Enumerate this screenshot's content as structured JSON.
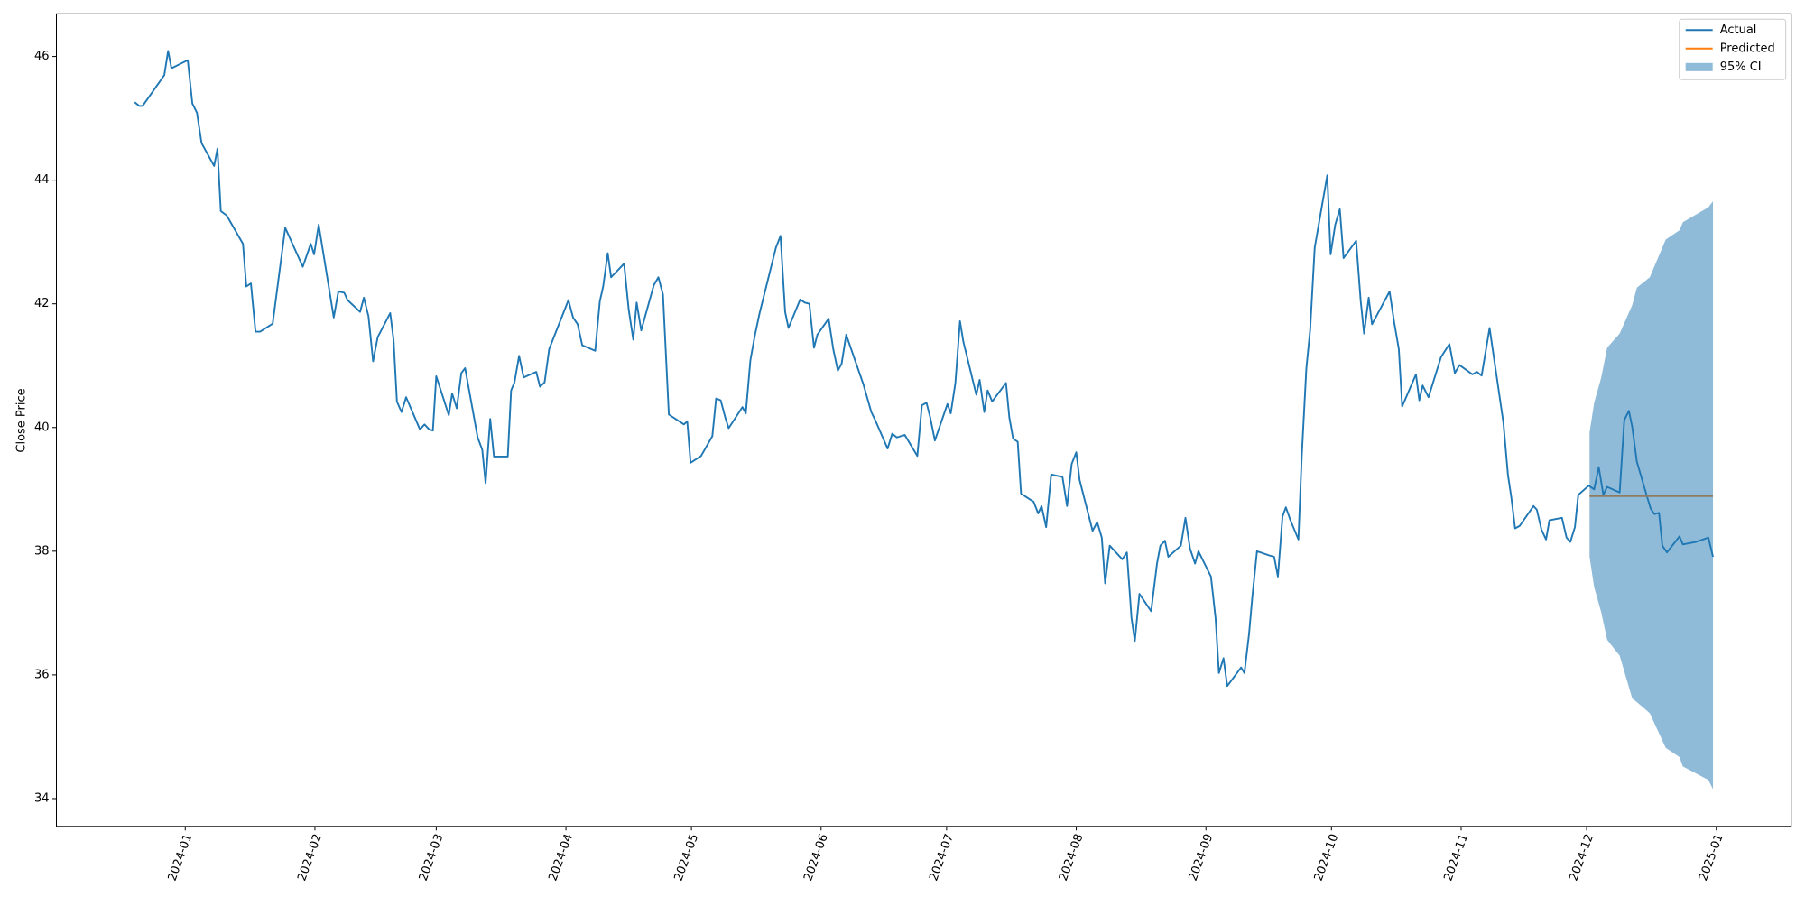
{
  "chart_data": {
    "type": "line",
    "ylabel": "Close Price",
    "xlim": [
      -30.8,
      383.9
    ],
    "ylim": [
      33.55,
      46.69
    ],
    "xticks": [
      {
        "value": 0,
        "label": "2024-01"
      },
      {
        "value": 31,
        "label": "2024-02"
      },
      {
        "value": 60,
        "label": "2024-03"
      },
      {
        "value": 91,
        "label": "2024-04"
      },
      {
        "value": 121,
        "label": "2024-05"
      },
      {
        "value": 152,
        "label": "2024-06"
      },
      {
        "value": 182,
        "label": "2024-07"
      },
      {
        "value": 213,
        "label": "2024-08"
      },
      {
        "value": 244,
        "label": "2024-09"
      },
      {
        "value": 274,
        "label": "2024-10"
      },
      {
        "value": 305,
        "label": "2024-11"
      },
      {
        "value": 335,
        "label": "2024-12"
      },
      {
        "value": 366,
        "label": "2025-01"
      }
    ],
    "yticks": [
      34,
      36,
      38,
      40,
      42,
      44,
      46
    ],
    "grid": false,
    "legend": "upper right",
    "series": [
      {
        "name": "Actual",
        "color": "#1f77b4",
        "x": [
          -12.1,
          -11.0,
          -10.2,
          -5.0,
          -4.1,
          -3.3,
          0.6,
          1.7,
          2.8,
          3.9,
          6.9,
          7.7,
          8.5,
          9.9,
          13.8,
          14.6,
          15.7,
          16.8,
          17.9,
          20.9,
          23.9,
          28.1,
          30.0,
          30.8,
          31.9,
          35.5,
          36.6,
          38.0,
          38.8,
          41.8,
          42.7,
          43.8,
          44.9,
          46.0,
          49.0,
          49.8,
          50.6,
          51.7,
          52.8,
          56.1,
          57.2,
          58.3,
          59.2,
          60.0,
          63.0,
          63.8,
          64.9,
          66.0,
          66.9,
          69.9,
          71.0,
          71.8,
          72.9,
          73.8,
          77.1,
          77.9,
          78.7,
          79.8,
          80.9,
          83.9,
          84.8,
          85.9,
          87.0,
          91.6,
          92.7,
          93.8,
          94.9,
          98.0,
          99.1,
          99.9,
          101.0,
          101.8,
          104.9,
          106.0,
          107.1,
          107.9,
          109.0,
          112.0,
          113.1,
          114.2,
          115.6,
          119.2,
          120.0,
          120.8,
          123.3,
          126.0,
          126.9,
          128.0,
          129.1,
          129.9,
          133.2,
          134.0,
          135.1,
          136.2,
          137.3,
          141.2,
          142.3,
          143.4,
          144.2,
          147.0,
          148.1,
          149.2,
          150.3,
          151.1,
          153.8,
          154.9,
          156.0,
          156.9,
          158.0,
          162.1,
          164.0,
          164.8,
          167.9,
          169.0,
          170.1,
          172.0,
          175.0,
          176.1,
          177.2,
          178.1,
          179.2,
          182.2,
          183.0,
          184.1,
          185.2,
          186.0,
          189.1,
          189.9,
          191.0,
          191.8,
          192.9,
          196.2,
          197.0,
          197.9,
          199.0,
          199.8,
          202.8,
          203.9,
          204.7,
          205.8,
          207.0,
          209.7,
          210.8,
          211.9,
          213.0,
          213.8,
          216.9,
          218.0,
          219.1,
          219.9,
          221.0,
          224.0,
          225.1,
          226.2,
          227.0,
          228.1,
          230.9,
          232.3,
          233.1,
          234.2,
          235.0,
          238.0,
          239.1,
          240.2,
          241.4,
          242.2,
          245.2,
          246.3,
          247.1,
          248.2,
          249.1,
          252.4,
          253.2,
          254.3,
          255.1,
          256.2,
          259.2,
          260.3,
          261.2,
          262.3,
          263.1,
          264.2,
          266.1,
          266.9,
          268.0,
          268.9,
          270.0,
          273.0,
          273.8,
          274.9,
          276.0,
          276.9,
          279.9,
          281.0,
          281.8,
          282.9,
          283.7,
          287.9,
          289.0,
          290.1,
          290.9,
          294.2,
          295.0,
          295.8,
          297.2,
          300.2,
          302.2,
          303.5,
          304.6,
          307.7,
          308.8,
          309.9,
          311.8,
          315.1,
          316.2,
          317.0,
          317.9,
          319.0,
          322.3,
          323.1,
          324.2,
          325.3,
          326.1,
          329.1,
          330.2,
          331.1,
          332.2,
          333.0,
          335.5,
          336.8,
          337.9,
          339.0,
          339.9,
          342.9,
          344.0,
          345.1,
          345.9,
          347.0,
          349.5,
          350.3,
          351.2,
          352.3,
          353.1,
          354.2,
          357.2,
          358.0,
          361.1,
          364.1,
          365.2
        ],
        "values": [
          45.26,
          45.2,
          45.2,
          45.7,
          46.09,
          45.81,
          45.94,
          45.24,
          45.09,
          44.6,
          44.23,
          44.51,
          43.5,
          43.43,
          42.97,
          42.28,
          42.33,
          41.55,
          41.55,
          41.68,
          43.23,
          42.6,
          42.97,
          42.8,
          43.28,
          41.78,
          42.2,
          42.18,
          42.06,
          41.87,
          42.1,
          41.8,
          41.07,
          41.46,
          41.85,
          41.42,
          40.42,
          40.25,
          40.49,
          39.97,
          40.05,
          39.97,
          39.95,
          40.83,
          40.2,
          40.55,
          40.31,
          40.88,
          40.96,
          39.84,
          39.64,
          39.1,
          40.14,
          39.53,
          39.53,
          40.6,
          40.73,
          41.16,
          40.81,
          40.9,
          40.66,
          40.73,
          41.27,
          42.06,
          41.78,
          41.67,
          41.33,
          41.24,
          42.04,
          42.28,
          42.82,
          42.43,
          42.65,
          41.91,
          41.42,
          42.02,
          41.57,
          42.3,
          42.43,
          42.15,
          40.21,
          40.05,
          40.1,
          39.43,
          39.54,
          39.86,
          40.47,
          40.44,
          40.16,
          39.99,
          40.33,
          40.23,
          41.09,
          41.5,
          41.85,
          42.91,
          43.1,
          41.87,
          41.61,
          42.07,
          42.02,
          42.0,
          41.29,
          41.5,
          41.76,
          41.27,
          40.92,
          41.03,
          41.5,
          40.7,
          40.25,
          40.14,
          39.66,
          39.9,
          39.84,
          39.88,
          39.54,
          40.36,
          40.4,
          40.16,
          39.79,
          40.38,
          40.23,
          40.72,
          41.72,
          41.39,
          40.53,
          40.77,
          40.25,
          40.6,
          40.42,
          40.72,
          40.16,
          39.82,
          39.77,
          38.93,
          38.8,
          38.61,
          38.73,
          38.39,
          39.24,
          39.2,
          38.73,
          39.41,
          39.6,
          39.15,
          38.33,
          38.47,
          38.22,
          37.48,
          38.09,
          37.87,
          37.98,
          36.92,
          36.55,
          37.31,
          37.03,
          37.8,
          38.09,
          38.17,
          37.91,
          38.09,
          38.54,
          38.04,
          37.8,
          38.0,
          37.59,
          36.92,
          36.03,
          36.27,
          35.82,
          36.12,
          36.03,
          36.66,
          37.27,
          38.0,
          37.93,
          37.91,
          37.59,
          38.56,
          38.71,
          38.5,
          38.19,
          39.54,
          40.96,
          41.57,
          42.91,
          44.08,
          42.8,
          43.28,
          43.53,
          42.74,
          43.02,
          42.04,
          41.52,
          42.1,
          41.67,
          42.2,
          41.7,
          41.27,
          40.34,
          40.86,
          40.44,
          40.68,
          40.49,
          41.14,
          41.35,
          40.88,
          41.01,
          40.86,
          40.9,
          40.84,
          41.61,
          40.08,
          39.23,
          38.87,
          38.37,
          38.41,
          38.73,
          38.67,
          38.35,
          38.19,
          38.5,
          38.54,
          38.22,
          38.15,
          38.39,
          38.91,
          39.06,
          39.0,
          39.36,
          38.91,
          39.04,
          38.95,
          40.12,
          40.27,
          40.01,
          39.45,
          38.87,
          38.69,
          38.6,
          38.62,
          38.09,
          37.98,
          38.24,
          38.11,
          38.15,
          38.22,
          37.91
        ]
      },
      {
        "name": "Predicted",
        "color": "#ff7f0e",
        "x": [
          335.7,
          365.2
        ],
        "values": [
          38.89,
          38.89
        ]
      },
      {
        "name": "95% CI",
        "color": "#1f77b4",
        "alpha": 0.5,
        "x": [
          335.7,
          336.8,
          338.5,
          339.9,
          342.9,
          345.9,
          347.0,
          350.1,
          353.9,
          357.2,
          358.0,
          364.1,
          365.2
        ],
        "lower": [
          37.91,
          37.42,
          37.01,
          36.57,
          36.31,
          35.62,
          35.56,
          35.38,
          34.82,
          34.67,
          34.52,
          34.3,
          34.15
        ],
        "upper": [
          39.92,
          40.4,
          40.81,
          41.29,
          41.52,
          41.98,
          42.26,
          42.43,
          43.04,
          43.19,
          43.32,
          43.56,
          43.66
        ]
      }
    ]
  }
}
